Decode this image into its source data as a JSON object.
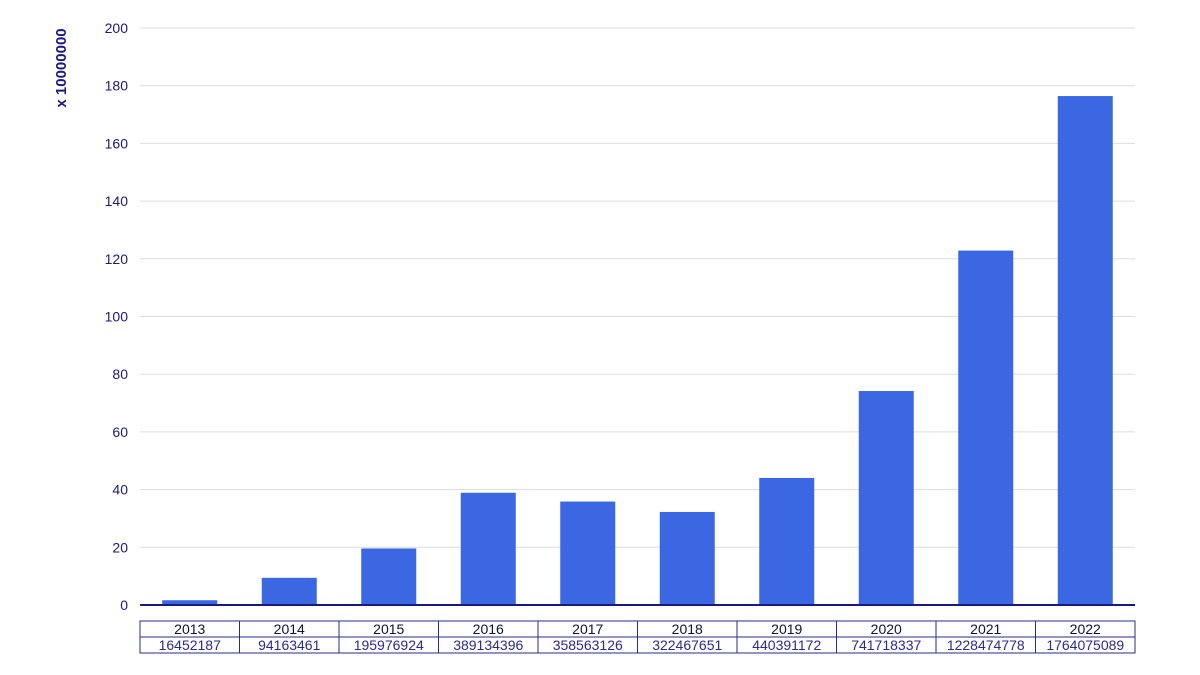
{
  "chart_data": {
    "type": "bar",
    "title": "",
    "xlabel": "",
    "ylabel": "x 10000000",
    "ylim": [
      0,
      200
    ],
    "yticks": [
      0,
      20,
      40,
      60,
      80,
      100,
      120,
      140,
      160,
      180,
      200
    ],
    "grid": true,
    "legend": "none",
    "categories": [
      "2013",
      "2014",
      "2015",
      "2016",
      "2017",
      "2018",
      "2019",
      "2020",
      "2021",
      "2022"
    ],
    "values": [
      1.65,
      9.42,
      19.6,
      38.91,
      35.86,
      32.25,
      44.04,
      74.17,
      122.85,
      176.41
    ],
    "table_values": [
      "16452187",
      "94163461",
      "195976924",
      "389134396",
      "358563126",
      "322467651",
      "440391172",
      "741718337",
      "1228474778",
      "1764075089"
    ],
    "colors": {
      "bar": "#3b67e3",
      "axis": "#1a1a7a",
      "grid": "#dddddd",
      "text": "#1a1a7a",
      "table_border": "#2b2b8a"
    }
  }
}
